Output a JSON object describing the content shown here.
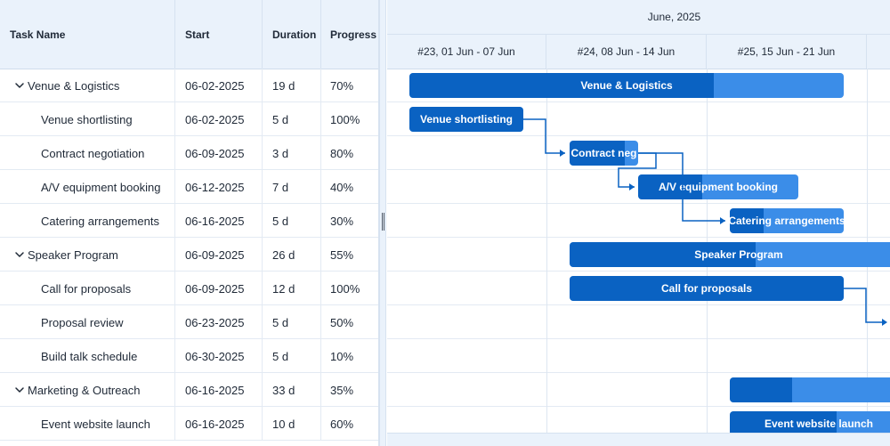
{
  "grid": {
    "columns": {
      "name": "Task Name",
      "start": "Start",
      "duration": "Duration",
      "progress": "Progress"
    },
    "rows": [
      {
        "name": "Venue & Logistics",
        "start": "06-02-2025",
        "duration": "19 d",
        "progress": "70%",
        "parent": true
      },
      {
        "name": "Venue shortlisting",
        "start": "06-02-2025",
        "duration": "5 d",
        "progress": "100%",
        "parent": false
      },
      {
        "name": "Contract negotiation",
        "start": "06-09-2025",
        "duration": "3 d",
        "progress": "80%",
        "parent": false
      },
      {
        "name": "A/V equipment booking",
        "start": "06-12-2025",
        "duration": "7 d",
        "progress": "40%",
        "parent": false
      },
      {
        "name": "Catering arrangements",
        "start": "06-16-2025",
        "duration": "5 d",
        "progress": "30%",
        "parent": false
      },
      {
        "name": "Speaker Program",
        "start": "06-09-2025",
        "duration": "26 d",
        "progress": "55%",
        "parent": true
      },
      {
        "name": "Call for proposals",
        "start": "06-09-2025",
        "duration": "12 d",
        "progress": "100%",
        "parent": false
      },
      {
        "name": "Proposal review",
        "start": "06-23-2025",
        "duration": "5 d",
        "progress": "50%",
        "parent": false
      },
      {
        "name": "Build talk schedule",
        "start": "06-30-2025",
        "duration": "5 d",
        "progress": "10%",
        "parent": false
      },
      {
        "name": "Marketing & Outreach",
        "start": "06-16-2025",
        "duration": "33 d",
        "progress": "35%",
        "parent": true
      },
      {
        "name": "Event website launch",
        "start": "06-16-2025",
        "duration": "10 d",
        "progress": "60%",
        "parent": false
      }
    ]
  },
  "timeline": {
    "month": "June, 2025",
    "weeks": [
      "#23, 01 Jun - 07 Jun",
      "#24, 08 Jun - 14 Jun",
      "#25, 15 Jun - 21 Jun"
    ]
  },
  "bars": [
    {
      "row": 0,
      "label": "Venue & Logistics",
      "progress": 0.7
    },
    {
      "row": 1,
      "label": "Venue shortlisting",
      "progress": 1.0
    },
    {
      "row": 2,
      "label": "Contract neg",
      "progress": 0.8
    },
    {
      "row": 3,
      "label": "A/V equipment booking",
      "progress": 0.4
    },
    {
      "row": 4,
      "label": "Catering arrangements",
      "progress": 0.3
    },
    {
      "row": 5,
      "label": "Speaker Program",
      "progress": 0.55
    },
    {
      "row": 6,
      "label": "Call for proposals",
      "progress": 1.0
    },
    {
      "row": 9,
      "label": "",
      "progress": 0.35
    },
    {
      "row": 10,
      "label": "Event website launch",
      "progress": 0.6
    }
  ],
  "colors": {
    "header_bg": "#eaf2fb",
    "bar_remaining": "#3b8de8",
    "bar_progress": "#0a62c2",
    "connector": "#0a62c2"
  },
  "icons": {
    "expand": "chevron-down-icon",
    "splitter": "splitter-grip-icon"
  }
}
